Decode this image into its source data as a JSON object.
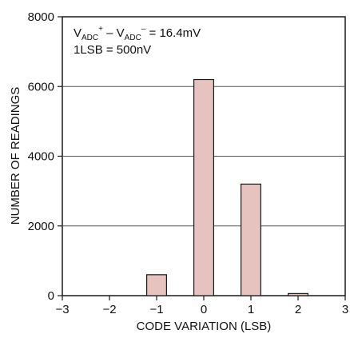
{
  "chart_data": {
    "type": "bar",
    "x": [
      -1,
      0,
      1,
      2
    ],
    "values": [
      600,
      6200,
      3200,
      60
    ],
    "xlabel": "CODE VARIATION (LSB)",
    "ylabel": "NUMBER OF READINGS",
    "xlim": [
      -3,
      3
    ],
    "ylim": [
      0,
      8000
    ],
    "xticks": [
      -3,
      -2,
      -1,
      0,
      1,
      2,
      3
    ],
    "yticks": [
      0,
      2000,
      4000,
      6000,
      8000
    ],
    "xtick_labels": [
      "−3",
      "−2",
      "−1",
      "0",
      "1",
      "2",
      "3"
    ],
    "ytick_labels": [
      "0",
      "2000",
      "4000",
      "6000",
      "8000"
    ],
    "grid": "horizontal",
    "bar_color": "#e6c3be",
    "bar_edge_color": "#1a1a1a",
    "annotations": {
      "line1": {
        "v": "V",
        "adc1": "ADC",
        "plus": "+",
        "minus_op": " – V",
        "adc2": "ADC",
        "minus": "–",
        "rest": " = 16.4mV"
      },
      "line2": "1LSB = 500nV"
    }
  }
}
